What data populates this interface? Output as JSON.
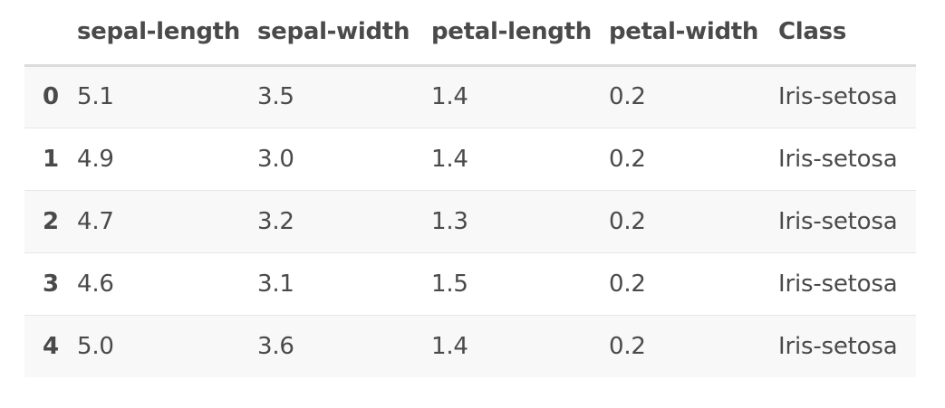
{
  "table": {
    "columns": [
      "",
      "sepal-length",
      "sepal-width",
      "petal-length",
      "petal-width",
      "Class"
    ],
    "rows": [
      {
        "index": "0",
        "cells": [
          "5.1",
          "3.5",
          "1.4",
          "0.2",
          "Iris-setosa"
        ]
      },
      {
        "index": "1",
        "cells": [
          "4.9",
          "3.0",
          "1.4",
          "0.2",
          "Iris-setosa"
        ]
      },
      {
        "index": "2",
        "cells": [
          "4.7",
          "3.2",
          "1.3",
          "0.2",
          "Iris-setosa"
        ]
      },
      {
        "index": "3",
        "cells": [
          "4.6",
          "3.1",
          "1.5",
          "0.2",
          "Iris-setosa"
        ]
      },
      {
        "index": "4",
        "cells": [
          "5.0",
          "3.6",
          "1.4",
          "0.2",
          "Iris-setosa"
        ]
      }
    ]
  },
  "colors": {
    "text": "#4a4a4a",
    "striped_row": "#f8f8f8",
    "header_rule": "#dcdcdc",
    "row_rule": "#e6e6e6"
  }
}
